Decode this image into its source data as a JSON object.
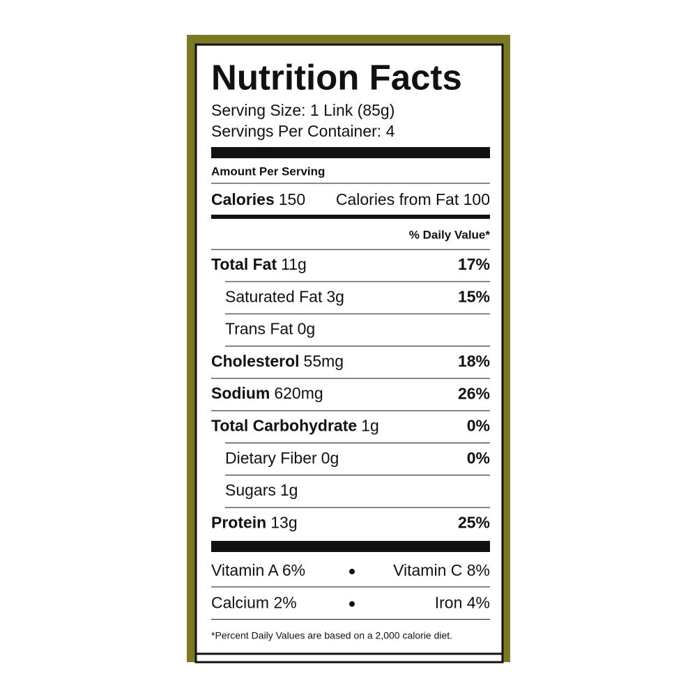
{
  "header": {
    "title": "Nutrition Facts",
    "serving_size": "Serving Size: 1 Link (85g)",
    "servings_per_container": "Servings Per Container: 4"
  },
  "amount_per_serving": "Amount Per Serving",
  "calories": {
    "label": "Calories",
    "value": "150",
    "from_fat": "Calories from Fat 100"
  },
  "daily_value_heading": "% Daily Value*",
  "nutrients": [
    {
      "name": "Total Fat",
      "amount": "11g",
      "dv": "17%",
      "bold": true,
      "indent": false
    },
    {
      "name": "Saturated Fat",
      "amount": "3g",
      "dv": "15%",
      "bold": false,
      "indent": true
    },
    {
      "name": "Trans Fat",
      "amount": "0g",
      "bold": false,
      "indent": true
    },
    {
      "name": "Cholesterol",
      "amount": "55mg",
      "dv": "18%",
      "bold": true,
      "indent": false
    },
    {
      "name": "Sodium",
      "amount": "620mg",
      "dv": "26%",
      "bold": true,
      "indent": false
    },
    {
      "name": "Total Carbohydrate",
      "amount": "1g",
      "dv": "0%",
      "bold": true,
      "indent": false
    },
    {
      "name": "Dietary Fiber",
      "amount": "0g",
      "dv": "0%",
      "bold": false,
      "indent": true
    },
    {
      "name": "Sugars",
      "amount": "1g",
      "bold": false,
      "indent": true
    },
    {
      "name": "Protein",
      "amount": "13g",
      "dv": "25%",
      "bold": true,
      "indent": false
    }
  ],
  "vitamins": [
    [
      "Vitamin A 6%",
      "Vitamin C 8%"
    ],
    [
      "Calcium 2%",
      "Iron 4%"
    ]
  ],
  "footnote": "*Percent Daily Values are based on a 2,000 calorie diet."
}
